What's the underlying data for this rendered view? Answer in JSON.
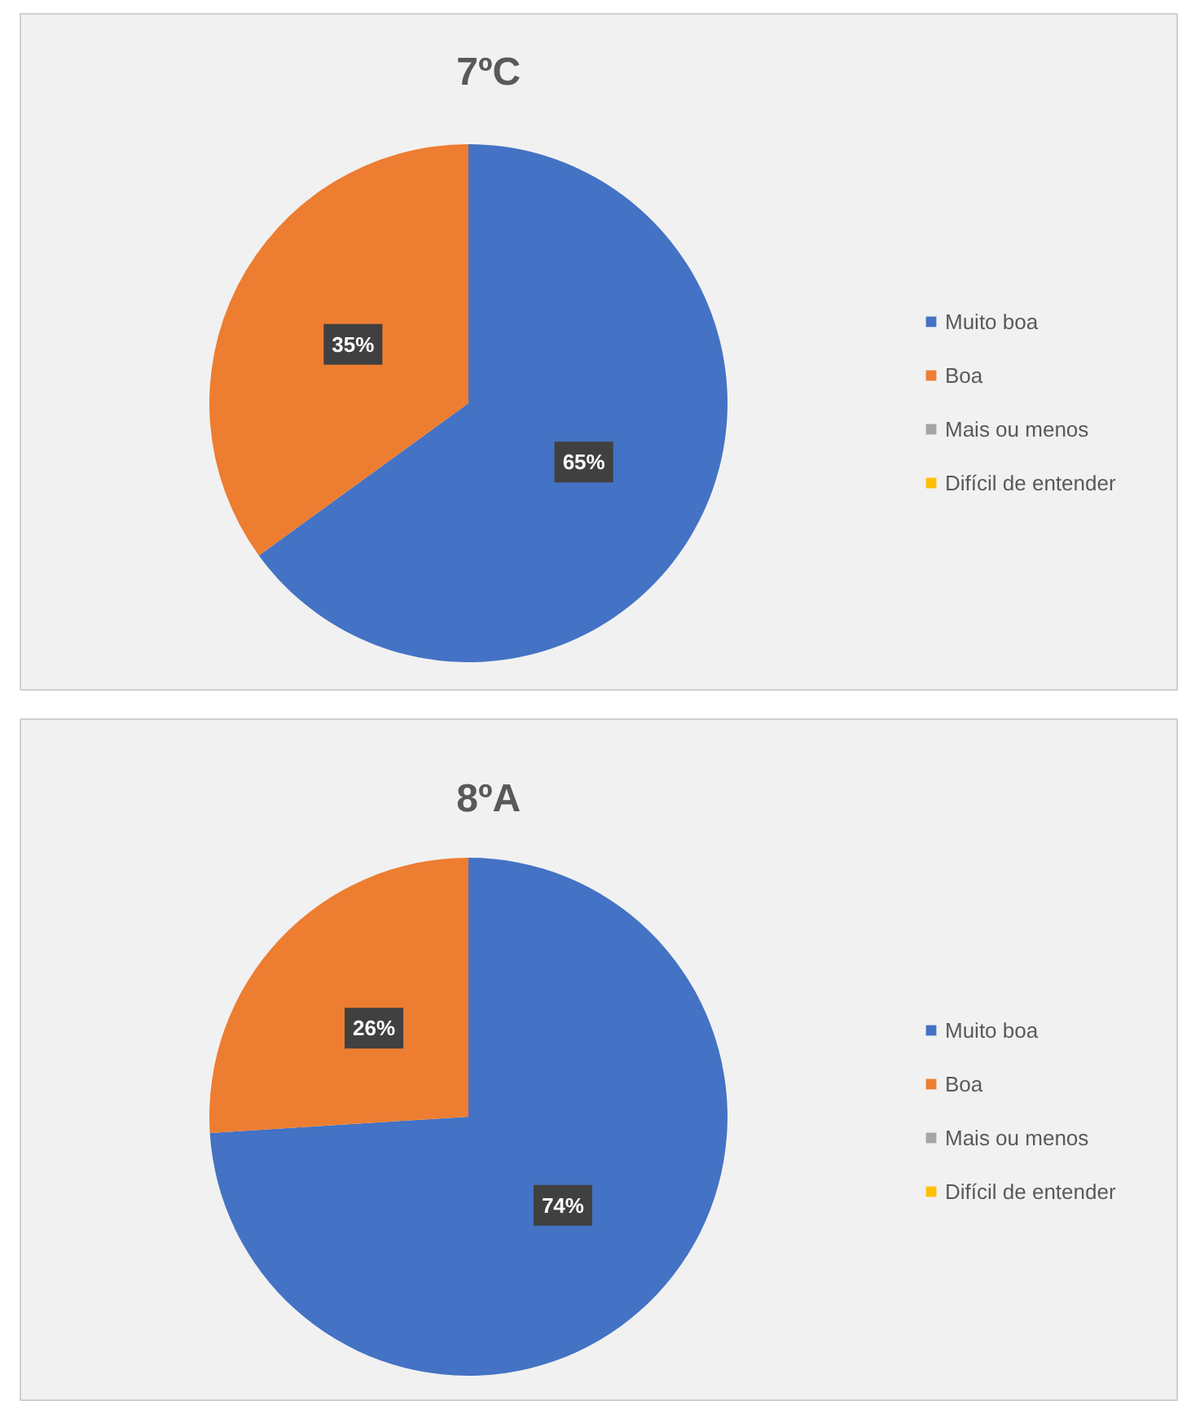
{
  "chart_data": [
    {
      "type": "pie",
      "title": "7ºC",
      "categories": [
        "Muito boa",
        "Boa",
        "Mais ou menos",
        "Difícil de entender"
      ],
      "values": [
        65,
        35,
        0,
        0
      ],
      "colors": [
        "#4472c4",
        "#ed7d31",
        "#a5a5a5",
        "#ffc000"
      ],
      "value_labels": [
        "65%",
        "35%",
        null,
        null
      ],
      "legend": "right"
    },
    {
      "type": "pie",
      "title": "8ºA",
      "categories": [
        "Muito boa",
        "Boa",
        "Mais ou menos",
        "Difícil de entender"
      ],
      "values": [
        74,
        26,
        0,
        0
      ],
      "colors": [
        "#4472c4",
        "#ed7d31",
        "#a5a5a5",
        "#ffc000"
      ],
      "value_labels": [
        "74%",
        "26%",
        null,
        null
      ],
      "legend": "right"
    }
  ]
}
